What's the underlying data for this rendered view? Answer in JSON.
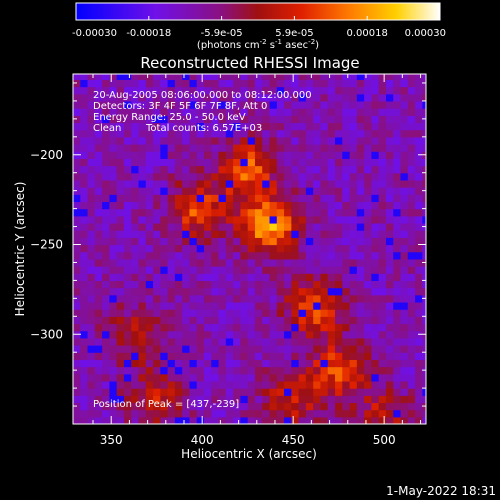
{
  "chart_data": {
    "type": "heatmap",
    "title": "Reconstructed RHESSI Image",
    "xlabel": "Heliocentric X (arcsec)",
    "ylabel": "Heliocentric Y (arcsec)",
    "xlim": [
      329,
      523
    ],
    "ylim": [
      -350,
      -155
    ],
    "xticks": [
      350,
      400,
      450,
      500
    ],
    "yticks": [
      -200,
      -250,
      -300
    ],
    "colorbar": {
      "ticks": [
        "-0.00030",
        "-0.00018",
        "-5.9e-05",
        "5.9e-05",
        "0.00018",
        "0.00030"
      ],
      "range": [
        -0.0003,
        0.0003
      ],
      "units_base": "(photons cm",
      "units_exp1": "-2",
      "units_mid": " s",
      "units_exp2": "-1",
      "units_mid2": " asec",
      "units_exp3": "-2",
      "units_end": ")"
    },
    "sources": [
      {
        "x": 437,
        "y": -239,
        "peak": 0.0003
      },
      {
        "x": 425,
        "y": -208,
        "peak": 0.00022
      },
      {
        "x": 398,
        "y": -230,
        "peak": 0.00021
      },
      {
        "x": 462,
        "y": -285,
        "peak": 0.00022
      },
      {
        "x": 475,
        "y": -320,
        "peak": 0.0002
      },
      {
        "x": 450,
        "y": -335,
        "peak": 0.00016
      },
      {
        "x": 375,
        "y": -335,
        "peak": 0.00015
      },
      {
        "x": 500,
        "y": -345,
        "peak": 0.00014
      },
      {
        "x": 362,
        "y": -300,
        "peak": 0.00012
      }
    ],
    "peak_position": [
      437,
      -239
    ]
  },
  "info": {
    "line1": "20-Aug-2005 08:06:00.000 to 08:12:00.000",
    "line2": "Detectors: 3F 4F 5F 6F 7F 8F, Att 0",
    "line3": "Energy Range: 25.0 - 50.0 keV",
    "line4_a": "Clean",
    "line4_b": "Total counts: 6.57E+03",
    "peak_label": "Position of Peak = [437,-239]"
  },
  "timestamp": "1-May-2022 18:31",
  "colors": {
    "background": "#000000",
    "text": "#ffffff",
    "axis": "#ffffff"
  }
}
